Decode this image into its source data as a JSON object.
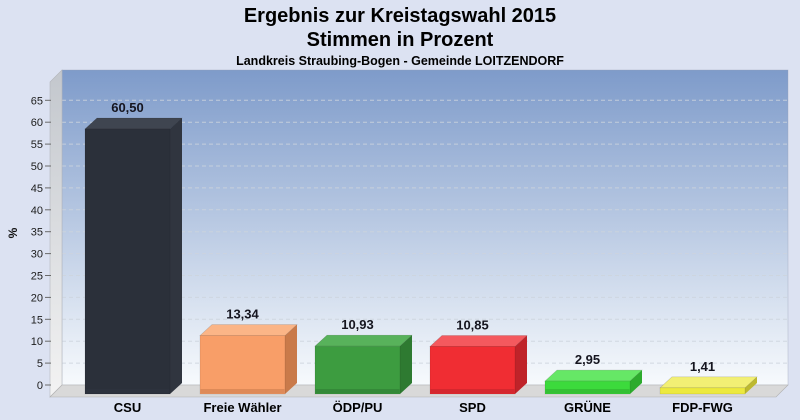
{
  "page": {
    "background": "#dce2f2"
  },
  "chart_data": {
    "type": "bar",
    "style": "3d-bars",
    "title": "Ergebnis zur Kreistagswahl 2015",
    "subtitle": "Stimmen in Prozent",
    "region_label": "Landkreis Straubing-Bogen - Gemeinde LOITZENDORF",
    "xlabel": "",
    "ylabel": "%",
    "ylim": [
      0,
      72
    ],
    "ytick_step": 5,
    "ytick_max": 65,
    "grid": "dashed-horizontal",
    "legend": "none",
    "categories": [
      "CSU",
      "Freie Wähler",
      "ÖDP/PU",
      "SPD",
      "GRÜNE",
      "FDP-FWG"
    ],
    "values": [
      60.5,
      13.34,
      10.93,
      10.85,
      2.95,
      1.41
    ],
    "value_labels": [
      "60,50",
      "13,34",
      "10,93",
      "10,85",
      "2,95",
      "1,41"
    ],
    "bar_colors": [
      {
        "party": "CSU",
        "front": "#2b303a",
        "top": "#3f4550",
        "side": "#30353f"
      },
      {
        "party": "Freie Wähler",
        "front": "#f89e68",
        "top": "#fbb587",
        "side": "#c97a4a"
      },
      {
        "party": "ÖDP/PU",
        "front": "#3d9c40",
        "top": "#58b25b",
        "side": "#2e7a31"
      },
      {
        "party": "SPD",
        "front": "#f02d33",
        "top": "#f4595e",
        "side": "#bf2329"
      },
      {
        "party": "GRÜNE",
        "front": "#3cda3c",
        "top": "#66e766",
        "side": "#2dab2d"
      },
      {
        "party": "FDP-FWG",
        "front": "#ece93e",
        "top": "#f2ef74",
        "side": "#bdb92f"
      }
    ],
    "back_wall_gradient_top": "#7e9bca",
    "back_wall_gradient_bottom": "#f7fafd",
    "left_wall_gradient_top": "#c3c7cd",
    "left_wall_gradient_bottom": "#f3f3f3",
    "floor_color": "#d9d9d9",
    "gridline_color": "#cdd3dd",
    "label_color": "#15151f"
  }
}
